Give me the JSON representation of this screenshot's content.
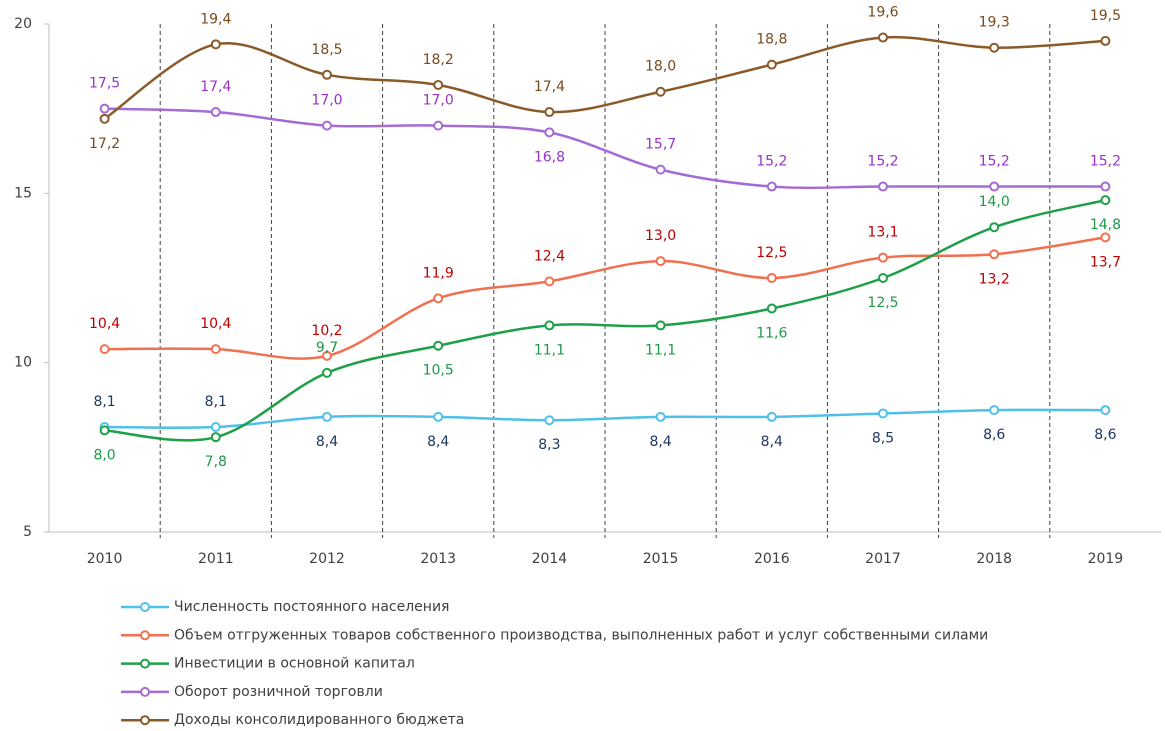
{
  "chart_data": {
    "type": "line",
    "categories": [
      "2010",
      "2011",
      "2012",
      "2013",
      "2014",
      "2015",
      "2016",
      "2017",
      "2018",
      "2019"
    ],
    "ylim": [
      5,
      20
    ],
    "yticks": [
      5,
      10,
      15,
      20
    ],
    "series": [
      {
        "name": "Численность постоянного населения",
        "color": "#4fc1e9",
        "label_color": "#1f3864",
        "values": [
          8.1,
          8.1,
          8.4,
          8.4,
          8.3,
          8.4,
          8.4,
          8.5,
          8.6,
          8.6
        ],
        "value_labels": [
          "8,1",
          "8,1",
          "8,4",
          "8,4",
          "8,3",
          "8,4",
          "8,4",
          "8,5",
          "8,6",
          "8,6"
        ]
      },
      {
        "name": "Объем отгруженных товаров собственного производства, выполненных работ и услуг собственными силами",
        "color": "#f07050",
        "label_color": "#c00000",
        "values": [
          10.4,
          10.4,
          10.2,
          11.9,
          12.4,
          13.0,
          12.5,
          13.1,
          13.2,
          13.7
        ],
        "value_labels": [
          "10,4",
          "10,4",
          "10,2",
          "11,9",
          "12,4",
          "13,0",
          "12,5",
          "13,1",
          "13,2",
          "13,7"
        ]
      },
      {
        "name": "Инвестиции в основной капитал",
        "color": "#1ea048",
        "label_color": "#1e9a48",
        "values": [
          8.0,
          7.8,
          9.7,
          10.5,
          11.1,
          11.1,
          11.6,
          12.5,
          14.0,
          14.8
        ],
        "value_labels": [
          "8,0",
          "7,8",
          "9,7",
          "10,5",
          "11,1",
          "11,1",
          "11,6",
          "12,5",
          "14,0",
          "14,8"
        ]
      },
      {
        "name": "Оборот розничной торговли",
        "color": "#a66bd3",
        "label_color": "#9933cc",
        "values": [
          17.5,
          17.4,
          17.0,
          17.0,
          16.8,
          15.7,
          15.2,
          15.2,
          15.2,
          15.2
        ],
        "value_labels": [
          "17,5",
          "17,4",
          "17,0",
          "17,0",
          "16,8",
          "15,7",
          "15,2",
          "15,2",
          "15,2",
          "15,2"
        ]
      },
      {
        "name": "Доходы консолидированного бюджета",
        "color": "#8b5a2b",
        "label_color": "#7a4a1e",
        "values": [
          17.2,
          19.4,
          18.5,
          18.2,
          17.4,
          18.0,
          18.8,
          19.6,
          19.3,
          19.5
        ],
        "value_labels": [
          "17,2",
          "19,4",
          "18,5",
          "18,2",
          "17,4",
          "18,0",
          "18,8",
          "19,6",
          "19,3",
          "19,5"
        ]
      }
    ]
  }
}
